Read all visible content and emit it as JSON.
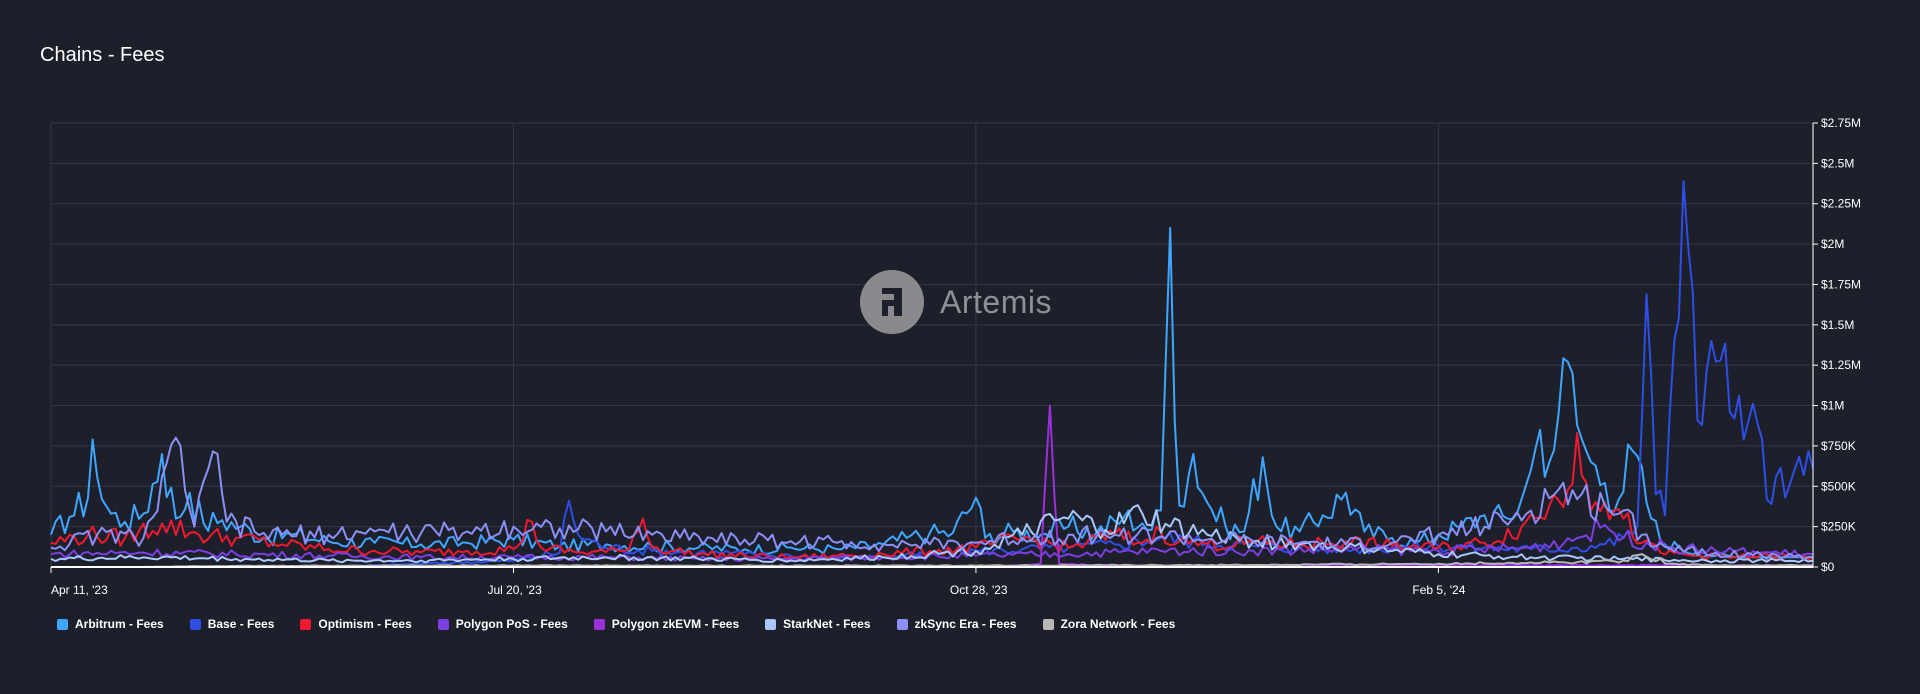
{
  "header": {
    "title": "Chains - Fees"
  },
  "watermark": {
    "text": "Artemis",
    "icon": "artemis-logo-icon"
  },
  "chart_data": {
    "type": "line",
    "title": "Chains - Fees",
    "x_start": "2023-04-11",
    "x_end": "2024-04-15",
    "xticks": [
      "Apr 11, '23",
      "Jul 20, '23",
      "Oct 28, '23",
      "Feb 5, '24"
    ],
    "yticks": [
      "$0",
      "$250K",
      "$500K",
      "$750K",
      "$1M",
      "$1.25M",
      "$1.5M",
      "$1.75M",
      "$2M",
      "$2.25M",
      "$2.5M",
      "$2.75M"
    ],
    "ylim": [
      0,
      2750000
    ],
    "grid": true,
    "legend_position": "bottom-left",
    "series": [
      {
        "name": "Arbitrum - Fees",
        "color": "#3ea6ff",
        "points": [
          [
            0,
            200000
          ],
          [
            4,
            310000
          ],
          [
            8,
            430000
          ],
          [
            9,
            790000
          ],
          [
            11,
            420000
          ],
          [
            13,
            330000
          ],
          [
            16,
            280000
          ],
          [
            20,
            330000
          ],
          [
            24,
            700000
          ],
          [
            27,
            300000
          ],
          [
            30,
            460000
          ],
          [
            33,
            270000
          ],
          [
            37,
            290000
          ],
          [
            41,
            250000
          ],
          [
            46,
            180000
          ],
          [
            52,
            200000
          ],
          [
            60,
            160000
          ],
          [
            70,
            150000
          ],
          [
            80,
            140000
          ],
          [
            90,
            150000
          ],
          [
            100,
            170000
          ],
          [
            110,
            130000
          ],
          [
            120,
            140000
          ],
          [
            130,
            130000
          ],
          [
            140,
            120000
          ],
          [
            150,
            110000
          ],
          [
            160,
            120000
          ],
          [
            170,
            110000
          ],
          [
            180,
            140000
          ],
          [
            185,
            180000
          ],
          [
            190,
            210000
          ],
          [
            195,
            210000
          ],
          [
            200,
            430000
          ],
          [
            202,
            180000
          ],
          [
            208,
            220000
          ],
          [
            214,
            200000
          ],
          [
            220,
            250000
          ],
          [
            226,
            210000
          ],
          [
            232,
            310000
          ],
          [
            236,
            270000
          ],
          [
            238,
            230000
          ],
          [
            240,
            350000
          ],
          [
            242,
            2100000
          ],
          [
            244,
            380000
          ],
          [
            247,
            700000
          ],
          [
            250,
            400000
          ],
          [
            254,
            250000
          ],
          [
            258,
            220000
          ],
          [
            262,
            680000
          ],
          [
            265,
            250000
          ],
          [
            270,
            220000
          ],
          [
            275,
            320000
          ],
          [
            280,
            460000
          ],
          [
            284,
            220000
          ],
          [
            290,
            180000
          ],
          [
            295,
            150000
          ],
          [
            300,
            200000
          ],
          [
            305,
            250000
          ],
          [
            310,
            320000
          ],
          [
            315,
            300000
          ],
          [
            318,
            420000
          ],
          [
            320,
            600000
          ],
          [
            322,
            850000
          ],
          [
            324,
            650000
          ],
          [
            326,
            950000
          ],
          [
            328,
            1270000
          ],
          [
            330,
            880000
          ],
          [
            333,
            650000
          ],
          [
            336,
            520000
          ],
          [
            339,
            420000
          ],
          [
            342,
            720000
          ],
          [
            345,
            400000
          ],
          [
            348,
            160000
          ],
          [
            352,
            120000
          ],
          [
            356,
            90000
          ],
          [
            360,
            70000
          ],
          [
            365,
            60000
          ]
        ]
      },
      {
        "name": "Base - Fees",
        "color": "#2e4ee6",
        "points": [
          [
            0,
            0
          ],
          [
            60,
            0
          ],
          [
            80,
            20000
          ],
          [
            100,
            40000
          ],
          [
            110,
            90000
          ],
          [
            112,
            410000
          ],
          [
            114,
            200000
          ],
          [
            120,
            120000
          ],
          [
            130,
            100000
          ],
          [
            140,
            90000
          ],
          [
            150,
            80000
          ],
          [
            160,
            70000
          ],
          [
            170,
            60000
          ],
          [
            180,
            60000
          ],
          [
            190,
            80000
          ],
          [
            200,
            100000
          ],
          [
            210,
            110000
          ],
          [
            220,
            120000
          ],
          [
            230,
            140000
          ],
          [
            240,
            180000
          ],
          [
            250,
            150000
          ],
          [
            260,
            130000
          ],
          [
            270,
            120000
          ],
          [
            280,
            110000
          ],
          [
            290,
            120000
          ],
          [
            300,
            130000
          ],
          [
            310,
            120000
          ],
          [
            320,
            110000
          ],
          [
            330,
            120000
          ],
          [
            336,
            140000
          ],
          [
            340,
            180000
          ],
          [
            343,
            250000
          ],
          [
            345,
            1690000
          ],
          [
            347,
            450000
          ],
          [
            349,
            320000
          ],
          [
            351,
            1400000
          ],
          [
            353,
            2390000
          ],
          [
            355,
            1700000
          ],
          [
            357,
            880000
          ],
          [
            359,
            1400000
          ],
          [
            361,
            1280000
          ],
          [
            363,
            960000
          ],
          [
            365,
            1060000
          ],
          [
            367,
            900000
          ],
          [
            369,
            890000
          ],
          [
            371,
            420000
          ],
          [
            373,
            560000
          ],
          [
            375,
            430000
          ],
          [
            377,
            600000
          ],
          [
            379,
            570000
          ],
          [
            381,
            610000
          ]
        ]
      },
      {
        "name": "Optimism - Fees",
        "color": "#f0192f",
        "points": [
          [
            0,
            150000
          ],
          [
            8,
            200000
          ],
          [
            16,
            180000
          ],
          [
            24,
            270000
          ],
          [
            32,
            200000
          ],
          [
            40,
            180000
          ],
          [
            50,
            140000
          ],
          [
            60,
            110000
          ],
          [
            70,
            100000
          ],
          [
            80,
            90000
          ],
          [
            90,
            100000
          ],
          [
            100,
            110000
          ],
          [
            104,
            280000
          ],
          [
            106,
            120000
          ],
          [
            114,
            90000
          ],
          [
            124,
            100000
          ],
          [
            128,
            300000
          ],
          [
            130,
            120000
          ],
          [
            140,
            80000
          ],
          [
            150,
            70000
          ],
          [
            160,
            60000
          ],
          [
            170,
            70000
          ],
          [
            180,
            80000
          ],
          [
            190,
            100000
          ],
          [
            200,
            120000
          ],
          [
            210,
            180000
          ],
          [
            220,
            120000
          ],
          [
            230,
            200000
          ],
          [
            236,
            150000
          ],
          [
            240,
            220000
          ],
          [
            244,
            160000
          ],
          [
            250,
            140000
          ],
          [
            260,
            150000
          ],
          [
            270,
            140000
          ],
          [
            280,
            160000
          ],
          [
            290,
            130000
          ],
          [
            300,
            120000
          ],
          [
            310,
            150000
          ],
          [
            318,
            250000
          ],
          [
            324,
            380000
          ],
          [
            328,
            480000
          ],
          [
            330,
            830000
          ],
          [
            332,
            520000
          ],
          [
            336,
            400000
          ],
          [
            340,
            300000
          ],
          [
            344,
            150000
          ],
          [
            348,
            90000
          ],
          [
            356,
            70000
          ],
          [
            364,
            60000
          ],
          [
            372,
            70000
          ],
          [
            381,
            60000
          ]
        ]
      },
      {
        "name": "Polygon PoS - Fees",
        "color": "#7b3fe4",
        "points": [
          [
            0,
            80000
          ],
          [
            20,
            90000
          ],
          [
            40,
            80000
          ],
          [
            60,
            70000
          ],
          [
            80,
            60000
          ],
          [
            100,
            60000
          ],
          [
            120,
            60000
          ],
          [
            140,
            50000
          ],
          [
            160,
            50000
          ],
          [
            180,
            60000
          ],
          [
            200,
            70000
          ],
          [
            220,
            80000
          ],
          [
            240,
            100000
          ],
          [
            260,
            100000
          ],
          [
            280,
            110000
          ],
          [
            300,
            100000
          ],
          [
            320,
            120000
          ],
          [
            330,
            180000
          ],
          [
            336,
            260000
          ],
          [
            340,
            180000
          ],
          [
            350,
            120000
          ],
          [
            360,
            100000
          ],
          [
            370,
            90000
          ],
          [
            381,
            80000
          ]
        ]
      },
      {
        "name": "Polygon zkEVM - Fees",
        "color": "#9b30d9",
        "points": [
          [
            0,
            0
          ],
          [
            200,
            0
          ],
          [
            210,
            10000
          ],
          [
            214,
            20000
          ],
          [
            216,
            1000000
          ],
          [
            218,
            20000
          ],
          [
            230,
            10000
          ],
          [
            260,
            10000
          ],
          [
            300,
            10000
          ],
          [
            340,
            10000
          ],
          [
            381,
            10000
          ]
        ]
      },
      {
        "name": "StarkNet - Fees",
        "color": "#a8c7fa",
        "points": [
          [
            0,
            50000
          ],
          [
            20,
            60000
          ],
          [
            40,
            50000
          ],
          [
            60,
            40000
          ],
          [
            80,
            40000
          ],
          [
            100,
            50000
          ],
          [
            120,
            60000
          ],
          [
            140,
            50000
          ],
          [
            160,
            40000
          ],
          [
            180,
            60000
          ],
          [
            200,
            100000
          ],
          [
            210,
            200000
          ],
          [
            220,
            300000
          ],
          [
            228,
            230000
          ],
          [
            236,
            330000
          ],
          [
            242,
            250000
          ],
          [
            250,
            200000
          ],
          [
            260,
            160000
          ],
          [
            270,
            140000
          ],
          [
            280,
            120000
          ],
          [
            290,
            100000
          ],
          [
            300,
            80000
          ],
          [
            310,
            70000
          ],
          [
            320,
            60000
          ],
          [
            340,
            50000
          ],
          [
            360,
            40000
          ],
          [
            381,
            40000
          ]
        ]
      },
      {
        "name": "zkSync Era - Fees",
        "color": "#8c8ff5",
        "points": [
          [
            0,
            120000
          ],
          [
            10,
            200000
          ],
          [
            20,
            180000
          ],
          [
            28,
            750000
          ],
          [
            31,
            250000
          ],
          [
            36,
            700000
          ],
          [
            38,
            280000
          ],
          [
            44,
            220000
          ],
          [
            50,
            200000
          ],
          [
            60,
            200000
          ],
          [
            70,
            220000
          ],
          [
            80,
            210000
          ],
          [
            90,
            220000
          ],
          [
            100,
            250000
          ],
          [
            110,
            240000
          ],
          [
            120,
            220000
          ],
          [
            130,
            200000
          ],
          [
            140,
            190000
          ],
          [
            150,
            170000
          ],
          [
            160,
            160000
          ],
          [
            170,
            150000
          ],
          [
            180,
            140000
          ],
          [
            190,
            140000
          ],
          [
            200,
            150000
          ],
          [
            210,
            180000
          ],
          [
            220,
            200000
          ],
          [
            230,
            200000
          ],
          [
            240,
            190000
          ],
          [
            250,
            170000
          ],
          [
            260,
            160000
          ],
          [
            270,
            150000
          ],
          [
            280,
            140000
          ],
          [
            290,
            150000
          ],
          [
            300,
            200000
          ],
          [
            310,
            250000
          ],
          [
            316,
            300000
          ],
          [
            320,
            350000
          ],
          [
            326,
            480000
          ],
          [
            330,
            420000
          ],
          [
            336,
            380000
          ],
          [
            340,
            350000
          ],
          [
            344,
            200000
          ],
          [
            350,
            120000
          ],
          [
            360,
            90000
          ],
          [
            370,
            70000
          ],
          [
            381,
            60000
          ]
        ]
      },
      {
        "name": "Zora Network - Fees",
        "color": "#b8b8b8",
        "points": [
          [
            0,
            0
          ],
          [
            20,
            0
          ],
          [
            30,
            5000
          ],
          [
            60,
            8000
          ],
          [
            100,
            10000
          ],
          [
            140,
            8000
          ],
          [
            180,
            8000
          ],
          [
            220,
            10000
          ],
          [
            260,
            12000
          ],
          [
            300,
            20000
          ],
          [
            330,
            30000
          ],
          [
            340,
            40000
          ],
          [
            344,
            80000
          ],
          [
            350,
            20000
          ],
          [
            360,
            10000
          ],
          [
            381,
            10000
          ]
        ]
      }
    ]
  }
}
